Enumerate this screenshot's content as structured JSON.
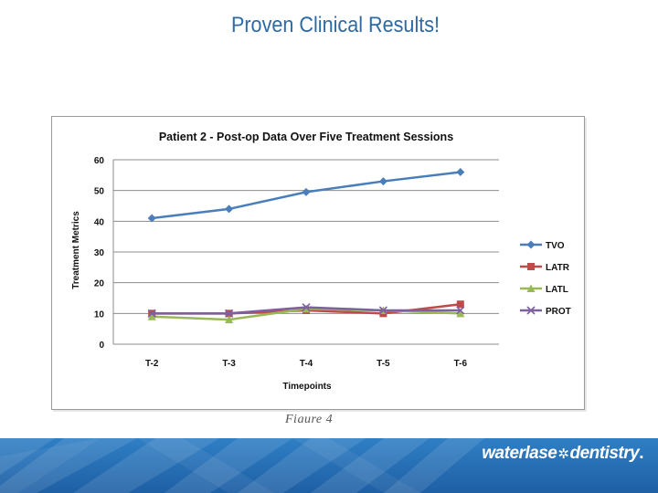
{
  "slide": {
    "title": "Proven Clinical Results!",
    "caption": "Figure 4",
    "brand": {
      "part1": "waterlase",
      "flake": "✲",
      "part2": "dentistry",
      "dot": "."
    }
  },
  "chart_data": {
    "type": "line",
    "title": "Patient 2 - Post-op Data Over Five Treatment Sessions",
    "xlabel": "Timepoints",
    "ylabel": "Treatment Metrics",
    "categories": [
      "T-2",
      "T-3",
      "T-4",
      "T-5",
      "T-6"
    ],
    "ylim": [
      0,
      60
    ],
    "yticks": [
      0,
      10,
      20,
      30,
      40,
      50,
      60
    ],
    "grid": true,
    "legend_position": "right",
    "series": [
      {
        "name": "TVO",
        "color": "#4a7ebb",
        "marker": "diamond",
        "values": [
          41,
          44,
          49.5,
          53,
          56
        ]
      },
      {
        "name": "LATR",
        "color": "#be4b48",
        "marker": "square",
        "values": [
          10,
          10,
          11,
          10,
          13
        ]
      },
      {
        "name": "LATL",
        "color": "#98b954",
        "marker": "triangle",
        "values": [
          9,
          8,
          11.5,
          11,
          10
        ]
      },
      {
        "name": "PROT",
        "color": "#7d60a0",
        "marker": "x",
        "values": [
          10,
          10,
          12,
          11,
          11
        ]
      }
    ]
  }
}
